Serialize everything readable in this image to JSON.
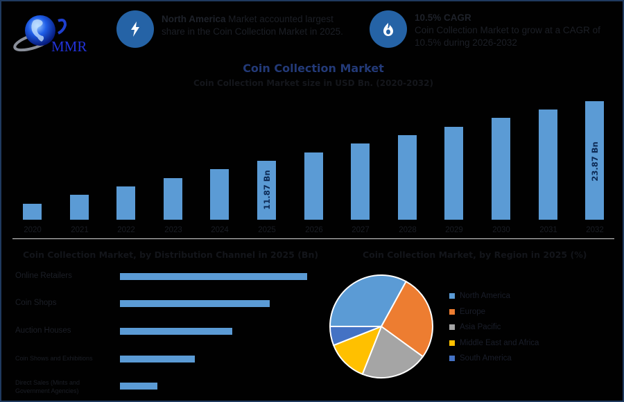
{
  "header": {
    "logo_text": "MMR",
    "info1": {
      "icon": "lightning-bolt-icon",
      "highlight": "North America",
      "text_line1_rest": " Market accounted largest",
      "text_line2": "share in the Coin Collection Market in 2025."
    },
    "info2": {
      "icon": "growth-flame-icon",
      "title": "10.5% CAGR",
      "text_line1": "Coin Collection Market to grow at a CAGR of",
      "text_line2": "10.5% during 2026-2032"
    }
  },
  "colors": {
    "bar": "#5b9bd5",
    "accent_circle": "#2563a6",
    "title": "#233a78",
    "north_america": "#5b9bd5",
    "europe": "#ed7d31",
    "asia_pacific": "#a5a5a5",
    "middle_east_africa": "#ffc000",
    "south_america": "#4472c4"
  },
  "chart_data": [
    {
      "type": "bar",
      "title": "Coin Collection Market",
      "subtitle": "Coin Collection Market size in USD Bn. (2020-2032)",
      "xlabel": "",
      "ylabel": "USD Bn",
      "categories": [
        "2020",
        "2021",
        "2022",
        "2023",
        "2024",
        "2025",
        "2026",
        "2027",
        "2028",
        "2029",
        "2030",
        "2031",
        "2032"
      ],
      "values": [
        3.2,
        5.0,
        6.7,
        8.4,
        10.2,
        11.87,
        13.6,
        15.4,
        17.1,
        18.7,
        20.5,
        22.2,
        23.87
      ],
      "data_labels": {
        "2025": "11.87 Bn",
        "2032": "23.87 Bn"
      },
      "ylim": [
        0,
        25
      ],
      "grid": false,
      "legend": "none"
    },
    {
      "type": "bar",
      "orientation": "horizontal",
      "title": "Coin Collection Market, by Distribution Channel in 2025 (Bn)",
      "categories": [
        "Online Retailers",
        "Coin Shops",
        "Auction Houses",
        "Coin Shows and Exhibitions",
        "Direct Sales (Mints and Government Agencies)"
      ],
      "values": [
        5.0,
        4.0,
        3.0,
        2.0,
        1.0
      ],
      "grid": false,
      "legend": "none"
    },
    {
      "type": "pie",
      "title": "Coin Collection Market, by Region in 2025 (%)",
      "categories": [
        "North America",
        "Europe",
        "Asia Pacific",
        "Middle East and Africa",
        "South America"
      ],
      "values": [
        33,
        27,
        21,
        13,
        6
      ],
      "legend": "right"
    }
  ],
  "main_chart": {
    "title": "Coin Collection Market",
    "subtitle": "Coin Collection Market size in USD Bn. (2020-2032)",
    "label_2025": "11.87 Bn",
    "label_2032": "23.87 Bn",
    "years": [
      "2020",
      "2021",
      "2022",
      "2023",
      "2024",
      "2025",
      "2026",
      "2027",
      "2028",
      "2029",
      "2030",
      "2031",
      "2032"
    ]
  },
  "channel_chart": {
    "title": "Coin Collection Market, by Distribution Channel in 2025 (Bn)",
    "items": [
      {
        "label": "Online Retailers"
      },
      {
        "label": "Coin Shops"
      },
      {
        "label": "Auction Houses"
      },
      {
        "label": "Coin Shows and Exhibitions"
      },
      {
        "label": "Direct Sales (Mints and Government Agencies)"
      }
    ]
  },
  "region_chart": {
    "title": "Coin Collection Market, by Region in 2025 (%)",
    "legend": [
      {
        "label": "North America"
      },
      {
        "label": "Europe"
      },
      {
        "label": "Asia Pacific"
      },
      {
        "label": "Middle East and Africa"
      },
      {
        "label": "South America"
      }
    ]
  }
}
